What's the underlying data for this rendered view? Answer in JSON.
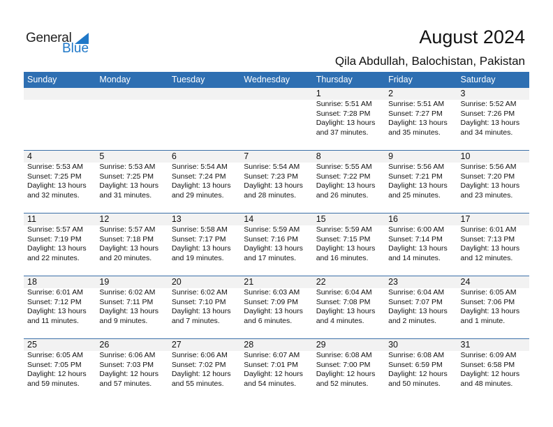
{
  "logo": {
    "text1": "General",
    "text2": "Blue"
  },
  "header": {
    "title": "August 2024",
    "location": "Qila Abdullah, Balochistan, Pakistan"
  },
  "weekdays": [
    "Sunday",
    "Monday",
    "Tuesday",
    "Wednesday",
    "Thursday",
    "Friday",
    "Saturday"
  ],
  "first_weekday_index": 4,
  "days": [
    {
      "d": "1",
      "sunrise": "Sunrise: 5:51 AM",
      "sunset": "Sunset: 7:28 PM",
      "daylight1": "Daylight: 13 hours",
      "daylight2": "and 37 minutes."
    },
    {
      "d": "2",
      "sunrise": "Sunrise: 5:51 AM",
      "sunset": "Sunset: 7:27 PM",
      "daylight1": "Daylight: 13 hours",
      "daylight2": "and 35 minutes."
    },
    {
      "d": "3",
      "sunrise": "Sunrise: 5:52 AM",
      "sunset": "Sunset: 7:26 PM",
      "daylight1": "Daylight: 13 hours",
      "daylight2": "and 34 minutes."
    },
    {
      "d": "4",
      "sunrise": "Sunrise: 5:53 AM",
      "sunset": "Sunset: 7:25 PM",
      "daylight1": "Daylight: 13 hours",
      "daylight2": "and 32 minutes."
    },
    {
      "d": "5",
      "sunrise": "Sunrise: 5:53 AM",
      "sunset": "Sunset: 7:25 PM",
      "daylight1": "Daylight: 13 hours",
      "daylight2": "and 31 minutes."
    },
    {
      "d": "6",
      "sunrise": "Sunrise: 5:54 AM",
      "sunset": "Sunset: 7:24 PM",
      "daylight1": "Daylight: 13 hours",
      "daylight2": "and 29 minutes."
    },
    {
      "d": "7",
      "sunrise": "Sunrise: 5:54 AM",
      "sunset": "Sunset: 7:23 PM",
      "daylight1": "Daylight: 13 hours",
      "daylight2": "and 28 minutes."
    },
    {
      "d": "8",
      "sunrise": "Sunrise: 5:55 AM",
      "sunset": "Sunset: 7:22 PM",
      "daylight1": "Daylight: 13 hours",
      "daylight2": "and 26 minutes."
    },
    {
      "d": "9",
      "sunrise": "Sunrise: 5:56 AM",
      "sunset": "Sunset: 7:21 PM",
      "daylight1": "Daylight: 13 hours",
      "daylight2": "and 25 minutes."
    },
    {
      "d": "10",
      "sunrise": "Sunrise: 5:56 AM",
      "sunset": "Sunset: 7:20 PM",
      "daylight1": "Daylight: 13 hours",
      "daylight2": "and 23 minutes."
    },
    {
      "d": "11",
      "sunrise": "Sunrise: 5:57 AM",
      "sunset": "Sunset: 7:19 PM",
      "daylight1": "Daylight: 13 hours",
      "daylight2": "and 22 minutes."
    },
    {
      "d": "12",
      "sunrise": "Sunrise: 5:57 AM",
      "sunset": "Sunset: 7:18 PM",
      "daylight1": "Daylight: 13 hours",
      "daylight2": "and 20 minutes."
    },
    {
      "d": "13",
      "sunrise": "Sunrise: 5:58 AM",
      "sunset": "Sunset: 7:17 PM",
      "daylight1": "Daylight: 13 hours",
      "daylight2": "and 19 minutes."
    },
    {
      "d": "14",
      "sunrise": "Sunrise: 5:59 AM",
      "sunset": "Sunset: 7:16 PM",
      "daylight1": "Daylight: 13 hours",
      "daylight2": "and 17 minutes."
    },
    {
      "d": "15",
      "sunrise": "Sunrise: 5:59 AM",
      "sunset": "Sunset: 7:15 PM",
      "daylight1": "Daylight: 13 hours",
      "daylight2": "and 16 minutes."
    },
    {
      "d": "16",
      "sunrise": "Sunrise: 6:00 AM",
      "sunset": "Sunset: 7:14 PM",
      "daylight1": "Daylight: 13 hours",
      "daylight2": "and 14 minutes."
    },
    {
      "d": "17",
      "sunrise": "Sunrise: 6:01 AM",
      "sunset": "Sunset: 7:13 PM",
      "daylight1": "Daylight: 13 hours",
      "daylight2": "and 12 minutes."
    },
    {
      "d": "18",
      "sunrise": "Sunrise: 6:01 AM",
      "sunset": "Sunset: 7:12 PM",
      "daylight1": "Daylight: 13 hours",
      "daylight2": "and 11 minutes."
    },
    {
      "d": "19",
      "sunrise": "Sunrise: 6:02 AM",
      "sunset": "Sunset: 7:11 PM",
      "daylight1": "Daylight: 13 hours",
      "daylight2": "and 9 minutes."
    },
    {
      "d": "20",
      "sunrise": "Sunrise: 6:02 AM",
      "sunset": "Sunset: 7:10 PM",
      "daylight1": "Daylight: 13 hours",
      "daylight2": "and 7 minutes."
    },
    {
      "d": "21",
      "sunrise": "Sunrise: 6:03 AM",
      "sunset": "Sunset: 7:09 PM",
      "daylight1": "Daylight: 13 hours",
      "daylight2": "and 6 minutes."
    },
    {
      "d": "22",
      "sunrise": "Sunrise: 6:04 AM",
      "sunset": "Sunset: 7:08 PM",
      "daylight1": "Daylight: 13 hours",
      "daylight2": "and 4 minutes."
    },
    {
      "d": "23",
      "sunrise": "Sunrise: 6:04 AM",
      "sunset": "Sunset: 7:07 PM",
      "daylight1": "Daylight: 13 hours",
      "daylight2": "and 2 minutes."
    },
    {
      "d": "24",
      "sunrise": "Sunrise: 6:05 AM",
      "sunset": "Sunset: 7:06 PM",
      "daylight1": "Daylight: 13 hours",
      "daylight2": "and 1 minute."
    },
    {
      "d": "25",
      "sunrise": "Sunrise: 6:05 AM",
      "sunset": "Sunset: 7:05 PM",
      "daylight1": "Daylight: 12 hours",
      "daylight2": "and 59 minutes."
    },
    {
      "d": "26",
      "sunrise": "Sunrise: 6:06 AM",
      "sunset": "Sunset: 7:03 PM",
      "daylight1": "Daylight: 12 hours",
      "daylight2": "and 57 minutes."
    },
    {
      "d": "27",
      "sunrise": "Sunrise: 6:06 AM",
      "sunset": "Sunset: 7:02 PM",
      "daylight1": "Daylight: 12 hours",
      "daylight2": "and 55 minutes."
    },
    {
      "d": "28",
      "sunrise": "Sunrise: 6:07 AM",
      "sunset": "Sunset: 7:01 PM",
      "daylight1": "Daylight: 12 hours",
      "daylight2": "and 54 minutes."
    },
    {
      "d": "29",
      "sunrise": "Sunrise: 6:08 AM",
      "sunset": "Sunset: 7:00 PM",
      "daylight1": "Daylight: 12 hours",
      "daylight2": "and 52 minutes."
    },
    {
      "d": "30",
      "sunrise": "Sunrise: 6:08 AM",
      "sunset": "Sunset: 6:59 PM",
      "daylight1": "Daylight: 12 hours",
      "daylight2": "and 50 minutes."
    },
    {
      "d": "31",
      "sunrise": "Sunrise: 6:09 AM",
      "sunset": "Sunset: 6:58 PM",
      "daylight1": "Daylight: 12 hours",
      "daylight2": "and 48 minutes."
    }
  ],
  "colors": {
    "header_bg": "#2e6fb2",
    "brand_blue": "#1f78c8",
    "date_band": "#f2f2f2"
  }
}
